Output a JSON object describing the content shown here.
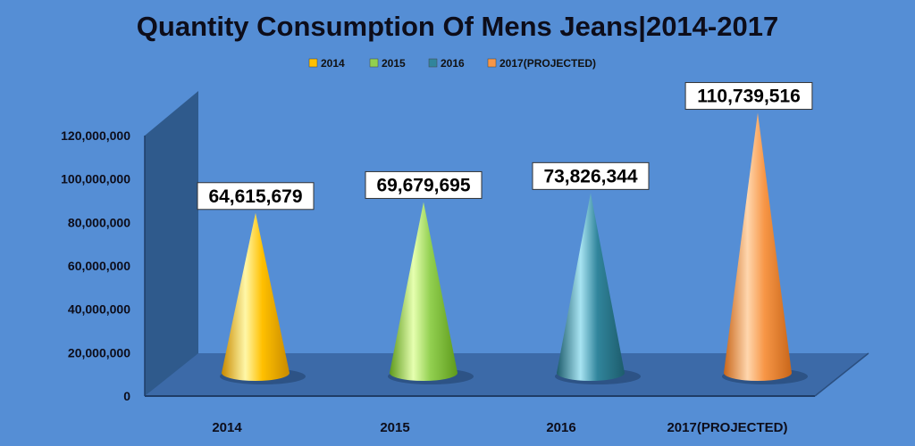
{
  "chart_data": {
    "type": "bar",
    "shape": "cone",
    "title": "Quantity Consumption Of Mens Jeans|2014-2017",
    "categories": [
      "2014",
      "2015",
      "2016",
      "2017(PROJECTED)"
    ],
    "values": [
      64615679,
      69679695,
      73826344,
      110739516
    ],
    "data_labels": [
      "64,615,679",
      "69,679,695",
      "73,826,344",
      "110,739,516"
    ],
    "legend": {
      "position": "top",
      "items": [
        {
          "label": "2014",
          "color": "#ffc000"
        },
        {
          "label": "2015",
          "color": "#92d050"
        },
        {
          "label": "2016",
          "color": "#31859c"
        },
        {
          "label": "2017(PROJECTED)",
          "color": "#f79646"
        }
      ]
    },
    "y_ticks": [
      "0",
      "20,000,000",
      "40,000,000",
      "60,000,000",
      "80,000,000",
      "100,000,000",
      "120,000,000"
    ],
    "ylim": [
      0,
      120000000
    ],
    "xlabel": "",
    "ylabel": "",
    "grid": false,
    "colors": {
      "background": "#558ed5",
      "walls": "#2f5a8c",
      "floor": "#3c6aa8",
      "cone_2014": "#ffc000",
      "cone_2015": "#92d050",
      "cone_2016": "#31859c",
      "cone_2017": "#f79646"
    }
  }
}
